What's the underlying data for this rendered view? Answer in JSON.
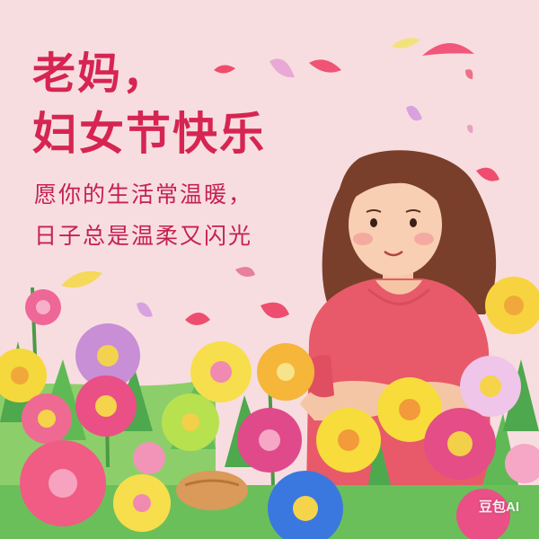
{
  "card": {
    "title_line1": "老妈，",
    "title_line2": "妇女节快乐",
    "wish_line1": "愿你的生活常温暖，",
    "wish_line2": "日子总是温柔又闪光",
    "watermark": "豆包AI"
  },
  "colors": {
    "background": "#f7dde0",
    "title": "#d62552",
    "sweater": "#e85a6a",
    "hair": "#7a3f2a"
  }
}
